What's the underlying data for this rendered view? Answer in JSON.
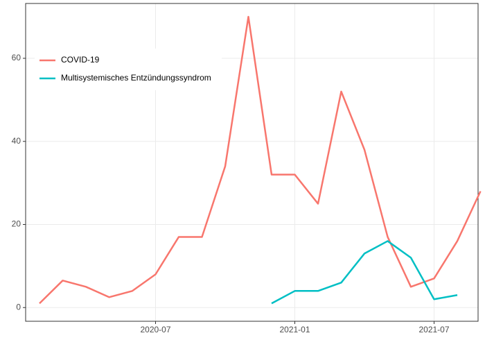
{
  "chart_data": {
    "type": "line",
    "x": [
      "2020-02",
      "2020-03",
      "2020-04",
      "2020-05",
      "2020-06",
      "2020-07",
      "2020-08",
      "2020-09",
      "2020-10",
      "2020-11",
      "2020-12",
      "2021-01",
      "2021-02",
      "2021-03",
      "2021-04",
      "2021-05",
      "2021-06",
      "2021-07",
      "2021-08",
      "2021-09"
    ],
    "series": [
      {
        "name": "COVID-19",
        "color": "#F8766D",
        "values": [
          1,
          6.5,
          5,
          2.5,
          4,
          8,
          17,
          17,
          34,
          70,
          32,
          32,
          25,
          52,
          38,
          17,
          5,
          7,
          16,
          28
        ]
      },
      {
        "name": "Multisystemisches Entzündungssyndrom",
        "color": "#00BFC4",
        "values": [
          null,
          null,
          null,
          null,
          null,
          null,
          null,
          null,
          null,
          null,
          1,
          4,
          4,
          6,
          13,
          16,
          12,
          2,
          3,
          null
        ]
      }
    ],
    "ylim": [
      -3.3,
      73.2
    ],
    "yticks": [
      0,
      20,
      40,
      60
    ],
    "xticks": [
      "2020-07",
      "2021-01",
      "2021-07"
    ],
    "grid": true,
    "legend": "top-left"
  }
}
